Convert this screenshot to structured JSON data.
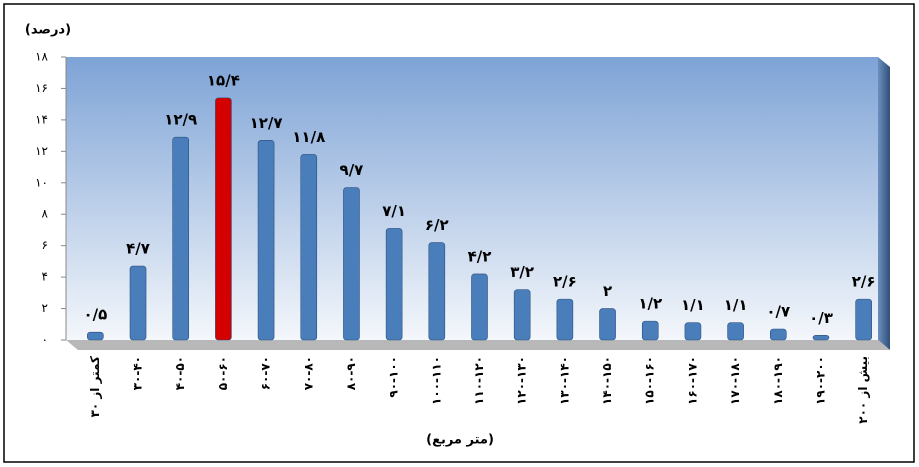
{
  "chart_data": {
    "type": "bar",
    "y_label": "(درصد)",
    "x_label": "(متر مربع)",
    "categories": [
      "کمتر از ۳۰",
      "۳۰-۴۰",
      "۴۰-۵۰",
      "۵۰-۶۰",
      "۶۰-۷۰",
      "۷۰-۸۰",
      "۸۰-۹۰",
      "۹۰-۱۰۰",
      "۱۰۰-۱۱۰",
      "۱۱۰-۱۲۰",
      "۱۲۰-۱۳۰",
      "۱۳۰-۱۴۰",
      "۱۴۰-۱۵۰",
      "۱۵۰-۱۶۰",
      "۱۶۰-۱۷۰",
      "۱۷۰-۱۸۰",
      "۱۸۰-۱۹۰",
      "۱۹۰-۲۰۰",
      "بیش از ۲۰۰"
    ],
    "values": [
      0.5,
      4.7,
      12.9,
      15.4,
      12.7,
      11.8,
      9.7,
      7.1,
      6.2,
      4.2,
      3.2,
      2.6,
      2,
      1.2,
      1.1,
      1.1,
      0.7,
      0.3,
      2.6
    ],
    "value_labels": [
      "۰/۵",
      "۴/۷",
      "۱۲/۹",
      "۱۵/۴",
      "۱۲/۷",
      "۱۱/۸",
      "۹/۷",
      "۷/۱",
      "۶/۲",
      "۴/۲",
      "۳/۲",
      "۲/۶",
      "۲",
      "۱/۲",
      "۱/۱",
      "۱/۱",
      "۰/۷",
      "۰/۳",
      "۲/۶"
    ],
    "colors": [
      "#4a7ebb",
      "#4a7ebb",
      "#4a7ebb",
      "#d40000",
      "#4a7ebb",
      "#4a7ebb",
      "#4a7ebb",
      "#4a7ebb",
      "#4a7ebb",
      "#4a7ebb",
      "#4a7ebb",
      "#4a7ebb",
      "#4a7ebb",
      "#4a7ebb",
      "#4a7ebb",
      "#4a7ebb",
      "#4a7ebb",
      "#4a7ebb",
      "#4a7ebb"
    ],
    "ylim": [
      0,
      18
    ],
    "yticks": [
      {
        "value": 0,
        "label": "۰"
      },
      {
        "value": 2,
        "label": "۲"
      },
      {
        "value": 4,
        "label": "۴"
      },
      {
        "value": 6,
        "label": "۶"
      },
      {
        "value": 8,
        "label": "۸"
      },
      {
        "value": 10,
        "label": "۱۰"
      },
      {
        "value": 12,
        "label": "۱۲"
      },
      {
        "value": 14,
        "label": "۱۴"
      },
      {
        "value": 16,
        "label": "۱۶"
      },
      {
        "value": 18,
        "label": "۱۸"
      }
    ],
    "grid": false
  }
}
